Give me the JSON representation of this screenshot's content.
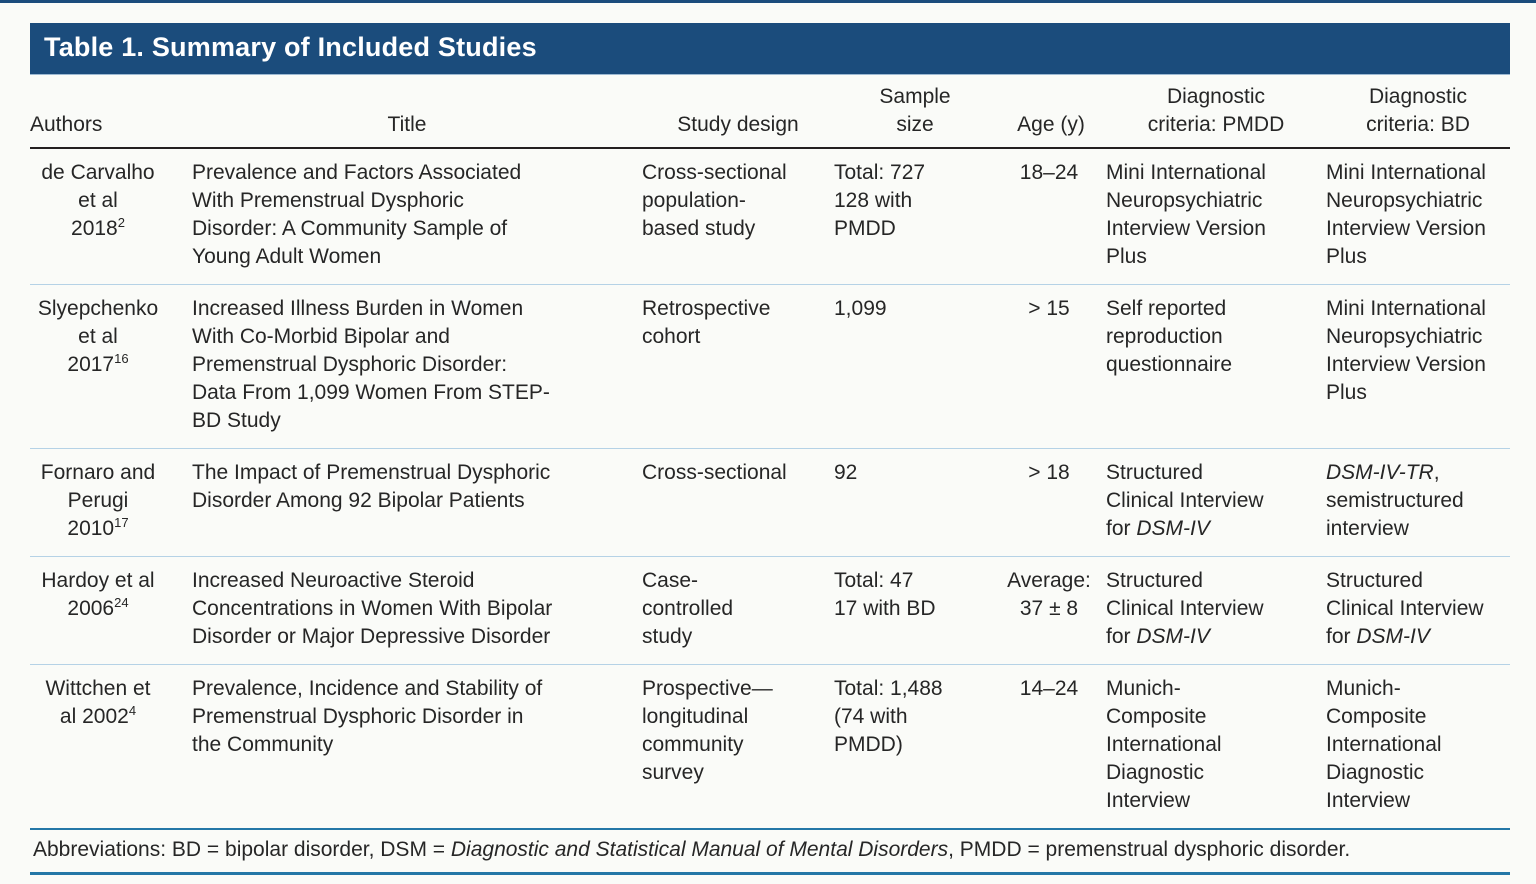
{
  "page": {
    "background": "#fafbf8",
    "accent_blue": "#1b4c7c",
    "rule_blue": "#2477a7",
    "separator_blue": "#b5d2e6",
    "text_color": "#262626"
  },
  "table": {
    "title": "Table 1. Summary of Included Studies",
    "columns": [
      {
        "label": "Authors"
      },
      {
        "label": "Title"
      },
      {
        "label": "Study design"
      },
      {
        "label": "Sample\nsize"
      },
      {
        "label": "Age (y)"
      },
      {
        "label": "Diagnostic\ncriteria: PMDD"
      },
      {
        "label": "Diagnostic\ncriteria: BD"
      }
    ],
    "rows": [
      {
        "authors": [
          {
            "text": "de Carvalho\net al\n2018"
          },
          {
            "text": "2",
            "sup": true
          }
        ],
        "title": [
          {
            "text": "Prevalence and Factors Associated\nWith Premenstrual Dysphoric\nDisorder: A Community Sample of\nYoung Adult Women"
          }
        ],
        "design": [
          {
            "text": "Cross-sectional\npopulation-\nbased study"
          }
        ],
        "sample": [
          {
            "text": "Total: 727\n128 with\nPMDD"
          }
        ],
        "age": [
          {
            "text": "18–24"
          }
        ],
        "pmdd": [
          {
            "text": "Mini International\nNeuropsychiatric\nInterview Version\nPlus"
          }
        ],
        "bd": [
          {
            "text": "Mini International\nNeuropsychiatric\nInterview Version\nPlus"
          }
        ]
      },
      {
        "authors": [
          {
            "text": "Slyepchenko\net al\n2017"
          },
          {
            "text": "16",
            "sup": true
          }
        ],
        "title": [
          {
            "text": "Increased Illness Burden in Women\nWith Co-Morbid Bipolar and\nPremenstrual Dysphoric Disorder:\nData From 1,099 Women From STEP-\nBD Study"
          }
        ],
        "design": [
          {
            "text": "Retrospective\ncohort"
          }
        ],
        "sample": [
          {
            "text": "1,099"
          }
        ],
        "age": [
          {
            "text": "> 15"
          }
        ],
        "pmdd": [
          {
            "text": "Self reported\nreproduction\nquestionnaire"
          }
        ],
        "bd": [
          {
            "text": "Mini International\nNeuropsychiatric\nInterview Version\nPlus"
          }
        ]
      },
      {
        "authors": [
          {
            "text": "Fornaro and\nPerugi\n2010"
          },
          {
            "text": "17",
            "sup": true
          }
        ],
        "title": [
          {
            "text": "The Impact of Premenstrual Dysphoric\nDisorder Among 92 Bipolar Patients"
          }
        ],
        "design": [
          {
            "text": "Cross-sectional"
          }
        ],
        "sample": [
          {
            "text": "92"
          }
        ],
        "age": [
          {
            "text": "> 18"
          }
        ],
        "pmdd": [
          {
            "text": "Structured\nClinical Interview\nfor "
          },
          {
            "text": "DSM-IV",
            "italic": true
          }
        ],
        "bd": [
          {
            "text": "DSM-IV-TR",
            "italic": true
          },
          {
            "text": ",\nsemistructured\ninterview"
          }
        ]
      },
      {
        "authors": [
          {
            "text": "Hardoy et al\n2006"
          },
          {
            "text": "24",
            "sup": true
          }
        ],
        "title": [
          {
            "text": "Increased Neuroactive Steroid\nConcentrations in Women With Bipolar\nDisorder or Major Depressive Disorder"
          }
        ],
        "design": [
          {
            "text": "Case-\ncontrolled\nstudy"
          }
        ],
        "sample": [
          {
            "text": "Total: 47\n17 with BD"
          }
        ],
        "age": [
          {
            "text": "Average:\n37 ± 8"
          }
        ],
        "pmdd": [
          {
            "text": "Structured\nClinical Interview\nfor "
          },
          {
            "text": "DSM-IV",
            "italic": true
          }
        ],
        "bd": [
          {
            "text": "Structured\nClinical Interview\nfor "
          },
          {
            "text": "DSM-IV",
            "italic": true
          }
        ]
      },
      {
        "authors": [
          {
            "text": "Wittchen et\nal 2002"
          },
          {
            "text": "4",
            "sup": true
          }
        ],
        "title": [
          {
            "text": "Prevalence, Incidence and Stability of\nPremenstrual Dysphoric Disorder in\nthe Community"
          }
        ],
        "design": [
          {
            "text": "Prospective—\nlongitudinal\ncommunity\nsurvey"
          }
        ],
        "sample": [
          {
            "text": "Total: 1,488\n(74 with\nPMDD)"
          }
        ],
        "age": [
          {
            "text": "14–24"
          }
        ],
        "pmdd": [
          {
            "text": "Munich-\nComposite\nInternational\nDiagnostic\nInterview"
          }
        ],
        "bd": [
          {
            "text": "Munich-\nComposite\nInternational\nDiagnostic\nInterview"
          }
        ]
      }
    ],
    "footnote": [
      {
        "text": "Abbreviations: BD = bipolar disorder, DSM = "
      },
      {
        "text": "Diagnostic and Statistical Manual of Mental Disorders",
        "italic": true
      },
      {
        "text": ", PMDD = premenstrual dysphoric disorder."
      }
    ]
  }
}
